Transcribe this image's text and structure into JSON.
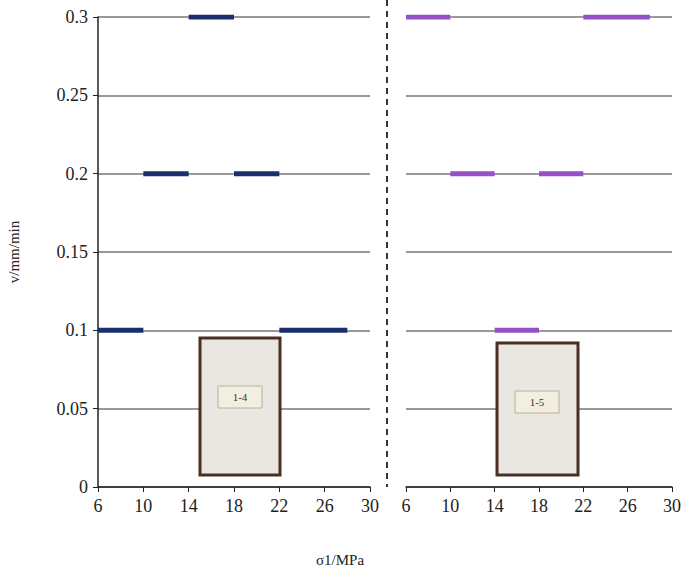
{
  "chart_data": [
    {
      "type": "line",
      "ylabel": "v/mm/min",
      "xlabel": "σ1/MPa",
      "annotation": "1-4",
      "xlim": [
        6,
        30
      ],
      "xticks": [
        6,
        10,
        14,
        18,
        22,
        26,
        30
      ],
      "ylim": [
        0,
        0.3
      ],
      "yticks": [
        0,
        0.05,
        0.1,
        0.15,
        0.2,
        0.25,
        0.3
      ],
      "grid": true,
      "tick_labels": true,
      "series": [
        {
          "color": "#1a2f6b",
          "x": [
            6,
            10
          ],
          "values": [
            0.1,
            0.1
          ]
        },
        {
          "color": "#1a2f6b",
          "x": [
            10,
            14
          ],
          "values": [
            0.2,
            0.2
          ]
        },
        {
          "color": "#1a2f6b",
          "x": [
            14,
            18
          ],
          "values": [
            0.3,
            0.3
          ]
        },
        {
          "color": "#1a2f6b",
          "x": [
            18,
            22
          ],
          "values": [
            0.2,
            0.2
          ]
        },
        {
          "color": "#1a2f6b",
          "x": [
            22,
            28
          ],
          "values": [
            0.1,
            0.1
          ]
        }
      ]
    },
    {
      "type": "line",
      "annotation": "1-5",
      "xlim": [
        6,
        30
      ],
      "xticks": [
        6,
        10,
        14,
        18,
        22,
        26,
        30
      ],
      "ylim": [
        0,
        0.3
      ],
      "yticks": [
        0,
        0.05,
        0.1,
        0.15,
        0.2,
        0.25,
        0.3
      ],
      "grid": true,
      "tick_labels": "x",
      "series": [
        {
          "color": "#9650c8",
          "x": [
            6,
            10
          ],
          "values": [
            0.3,
            0.3
          ]
        },
        {
          "color": "#9650c8",
          "x": [
            10,
            14
          ],
          "values": [
            0.2,
            0.2
          ]
        },
        {
          "color": "#9650c8",
          "x": [
            14,
            18
          ],
          "values": [
            0.1,
            0.1
          ]
        },
        {
          "color": "#9650c8",
          "x": [
            18,
            22
          ],
          "values": [
            0.2,
            0.2
          ]
        },
        {
          "color": "#9650c8",
          "x": [
            22,
            28
          ],
          "values": [
            0.3,
            0.3
          ]
        }
      ]
    }
  ]
}
